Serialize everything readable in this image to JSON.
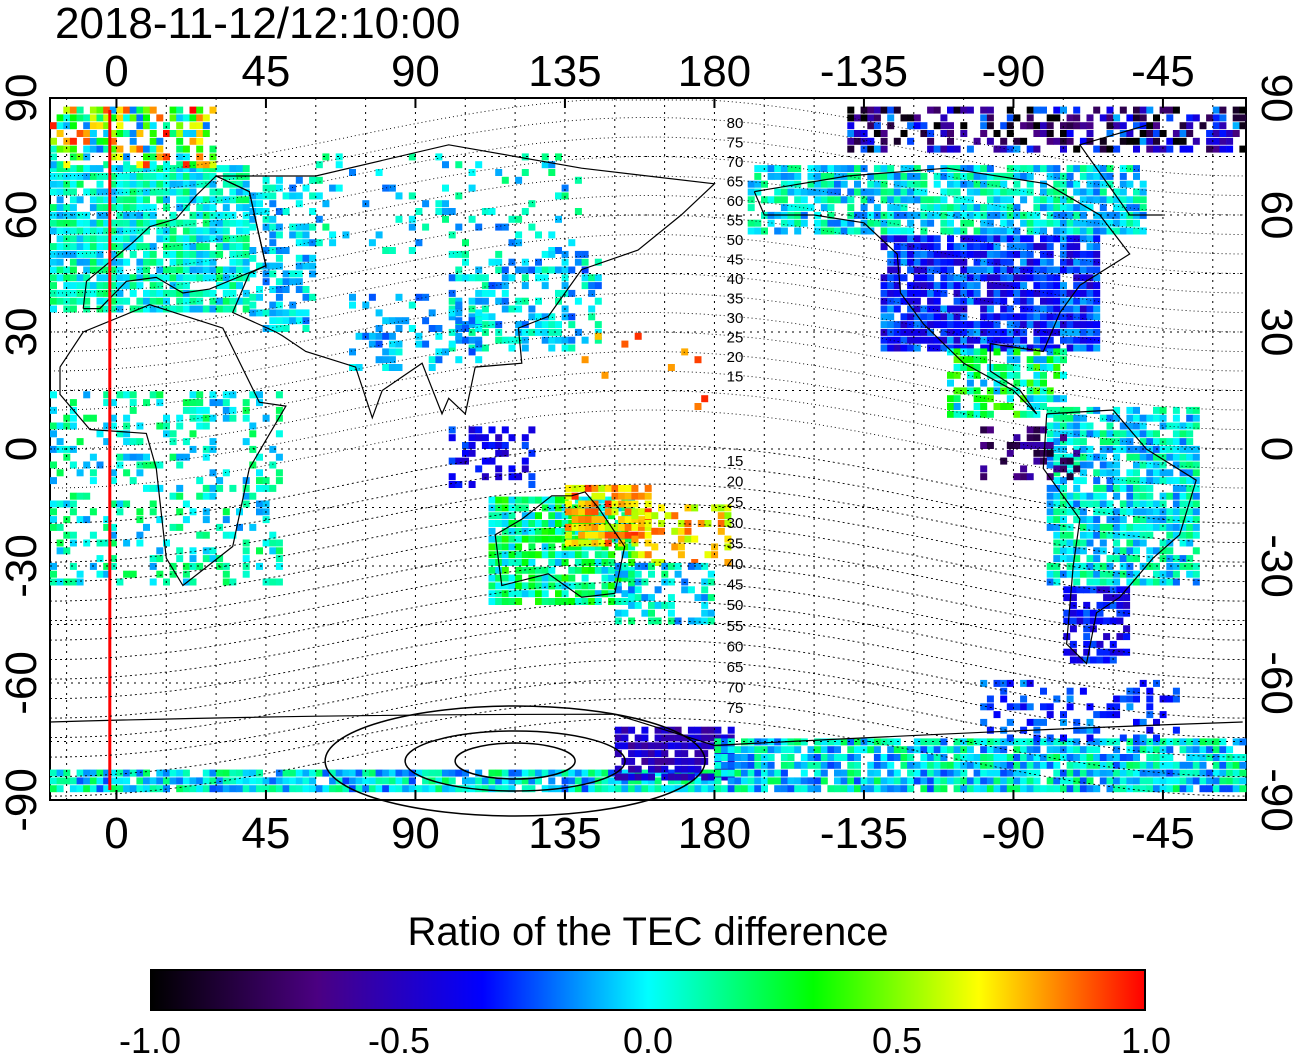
{
  "title": "2018-11-12/12:10:00",
  "map": {
    "lon_ticks": [
      "0",
      "45",
      "90",
      "135",
      "180",
      "-135",
      "-90",
      "-45"
    ],
    "lat_ticks": [
      "90",
      "60",
      "30",
      "0",
      "-30",
      "-60",
      "-90"
    ],
    "contour_labels_north": [
      "80",
      "75",
      "70",
      "65",
      "60",
      "55",
      "50",
      "45",
      "40",
      "35",
      "30",
      "25",
      "20",
      "15"
    ],
    "contour_labels_south": [
      "15",
      "20",
      "25",
      "30",
      "35",
      "40",
      "45",
      "50",
      "55",
      "60",
      "65",
      "70",
      "75"
    ],
    "terminator_color": "#ff0000"
  },
  "colorbar": {
    "title": "Ratio of the TEC difference",
    "ticks": [
      "-1.0",
      "-0.5",
      "0.0",
      "0.5",
      "1.0"
    ],
    "range": [
      -1.0,
      1.0
    ],
    "colors": [
      "#000000",
      "#4b0082",
      "#0000ff",
      "#00ffff",
      "#00ff00",
      "#ffff00",
      "#ff0000"
    ]
  }
}
